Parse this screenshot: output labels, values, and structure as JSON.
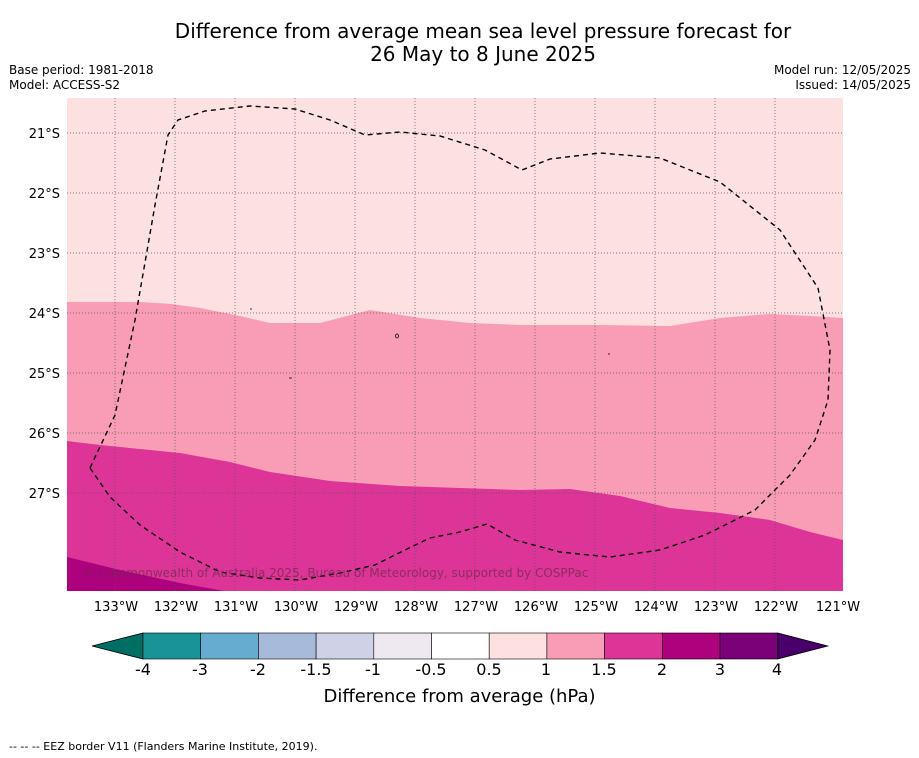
{
  "title_line1": "Difference from average mean sea level pressure forecast for",
  "title_line2": "26 May to 8 June 2025",
  "meta_left": [
    "Base period: 1981-2018",
    "Model: ACCESS-S2"
  ],
  "meta_right": [
    "Model run: 12/05/2025",
    "Issued: 14/05/2025"
  ],
  "map": {
    "lat_labels": [
      "21°S",
      "22°S",
      "23°S",
      "24°S",
      "25°S",
      "26°S",
      "27°S"
    ],
    "lon_labels": [
      "133°W",
      "132°W",
      "131°W",
      "130°W",
      "129°W",
      "128°W",
      "127°W",
      "126°W",
      "125°W",
      "124°W",
      "123°W",
      "122°W",
      "121°W"
    ],
    "copyright": "© Commonwealth of Australia 2025, Bureau of Meteorology, supported by COSPPac"
  },
  "colorbar": {
    "title": "Difference from average (hPa)",
    "tick_labels": [
      "-4",
      "-3",
      "-2",
      "-1.5",
      "-1",
      "-0.5",
      "0.5",
      "1",
      "1.5",
      "2",
      "3",
      "4"
    ],
    "colors": [
      "#006e64",
      "#1a9396",
      "#66abd0",
      "#a7bad9",
      "#cfd1e7",
      "#eee8f1",
      "#ffffff",
      "#fde0e0",
      "#f99db6",
      "#dd3497",
      "#ae017e",
      "#7a0177",
      "#49006a"
    ]
  },
  "footer": "--  --  -- EEZ border V11 (Flanders Marine Institute, 2019)."
}
